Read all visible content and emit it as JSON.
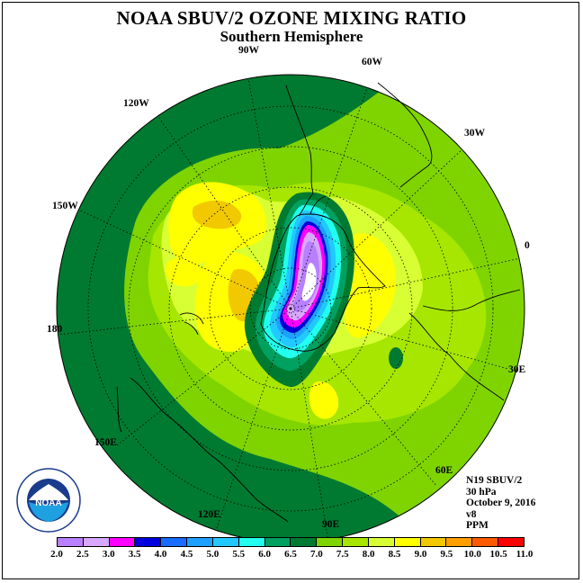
{
  "header": {
    "title": "NOAA SBUV/2 OZONE MIXING RATIO",
    "subtitle": "Southern Hemisphere"
  },
  "map_labels": {
    "lon_90w": "90W",
    "lon_60w": "60W",
    "lon_30w": "30W",
    "lon_0": "0",
    "lon_30e": "30E",
    "lon_60e": "60E",
    "lon_90e": "90E",
    "lon_120e": "120E",
    "lon_150e": "150E",
    "lon_180": "180",
    "lon_150w": "150W",
    "lon_120w": "120W"
  },
  "info": {
    "line1": "N19 SBUV/2",
    "line2": "30 hPa",
    "line3": "October 9, 2016",
    "line4": "v8",
    "line5": "PPM"
  },
  "logo": {
    "text": "NOAA",
    "ring_text": "NATIONAL OCEANIC AND ATMOSPHERIC ADMINISTRATION · U.S. DEPARTMENT OF COMMERCE"
  },
  "colorbar": {
    "ticks": [
      "2.0",
      "2.5",
      "3.0",
      "3.5",
      "4.0",
      "4.5",
      "5.0",
      "5.5",
      "6.0",
      "6.5",
      "7.0",
      "7.5",
      "8.0",
      "8.5",
      "9.0",
      "9.5",
      "10.0",
      "10.5",
      "11.0"
    ],
    "colors": [
      "#b87fff",
      "#d8a8ff",
      "#ff00ff",
      "#0000dd",
      "#1a6bff",
      "#1ea0ff",
      "#22c8ff",
      "#22ffee",
      "#00a060",
      "#007a30",
      "#7fd400",
      "#a6e600",
      "#d8ff33",
      "#ffff00",
      "#f2c800",
      "#ff9e00",
      "#ff5a00",
      "#ff0000",
      "#8c4a2e"
    ]
  }
}
